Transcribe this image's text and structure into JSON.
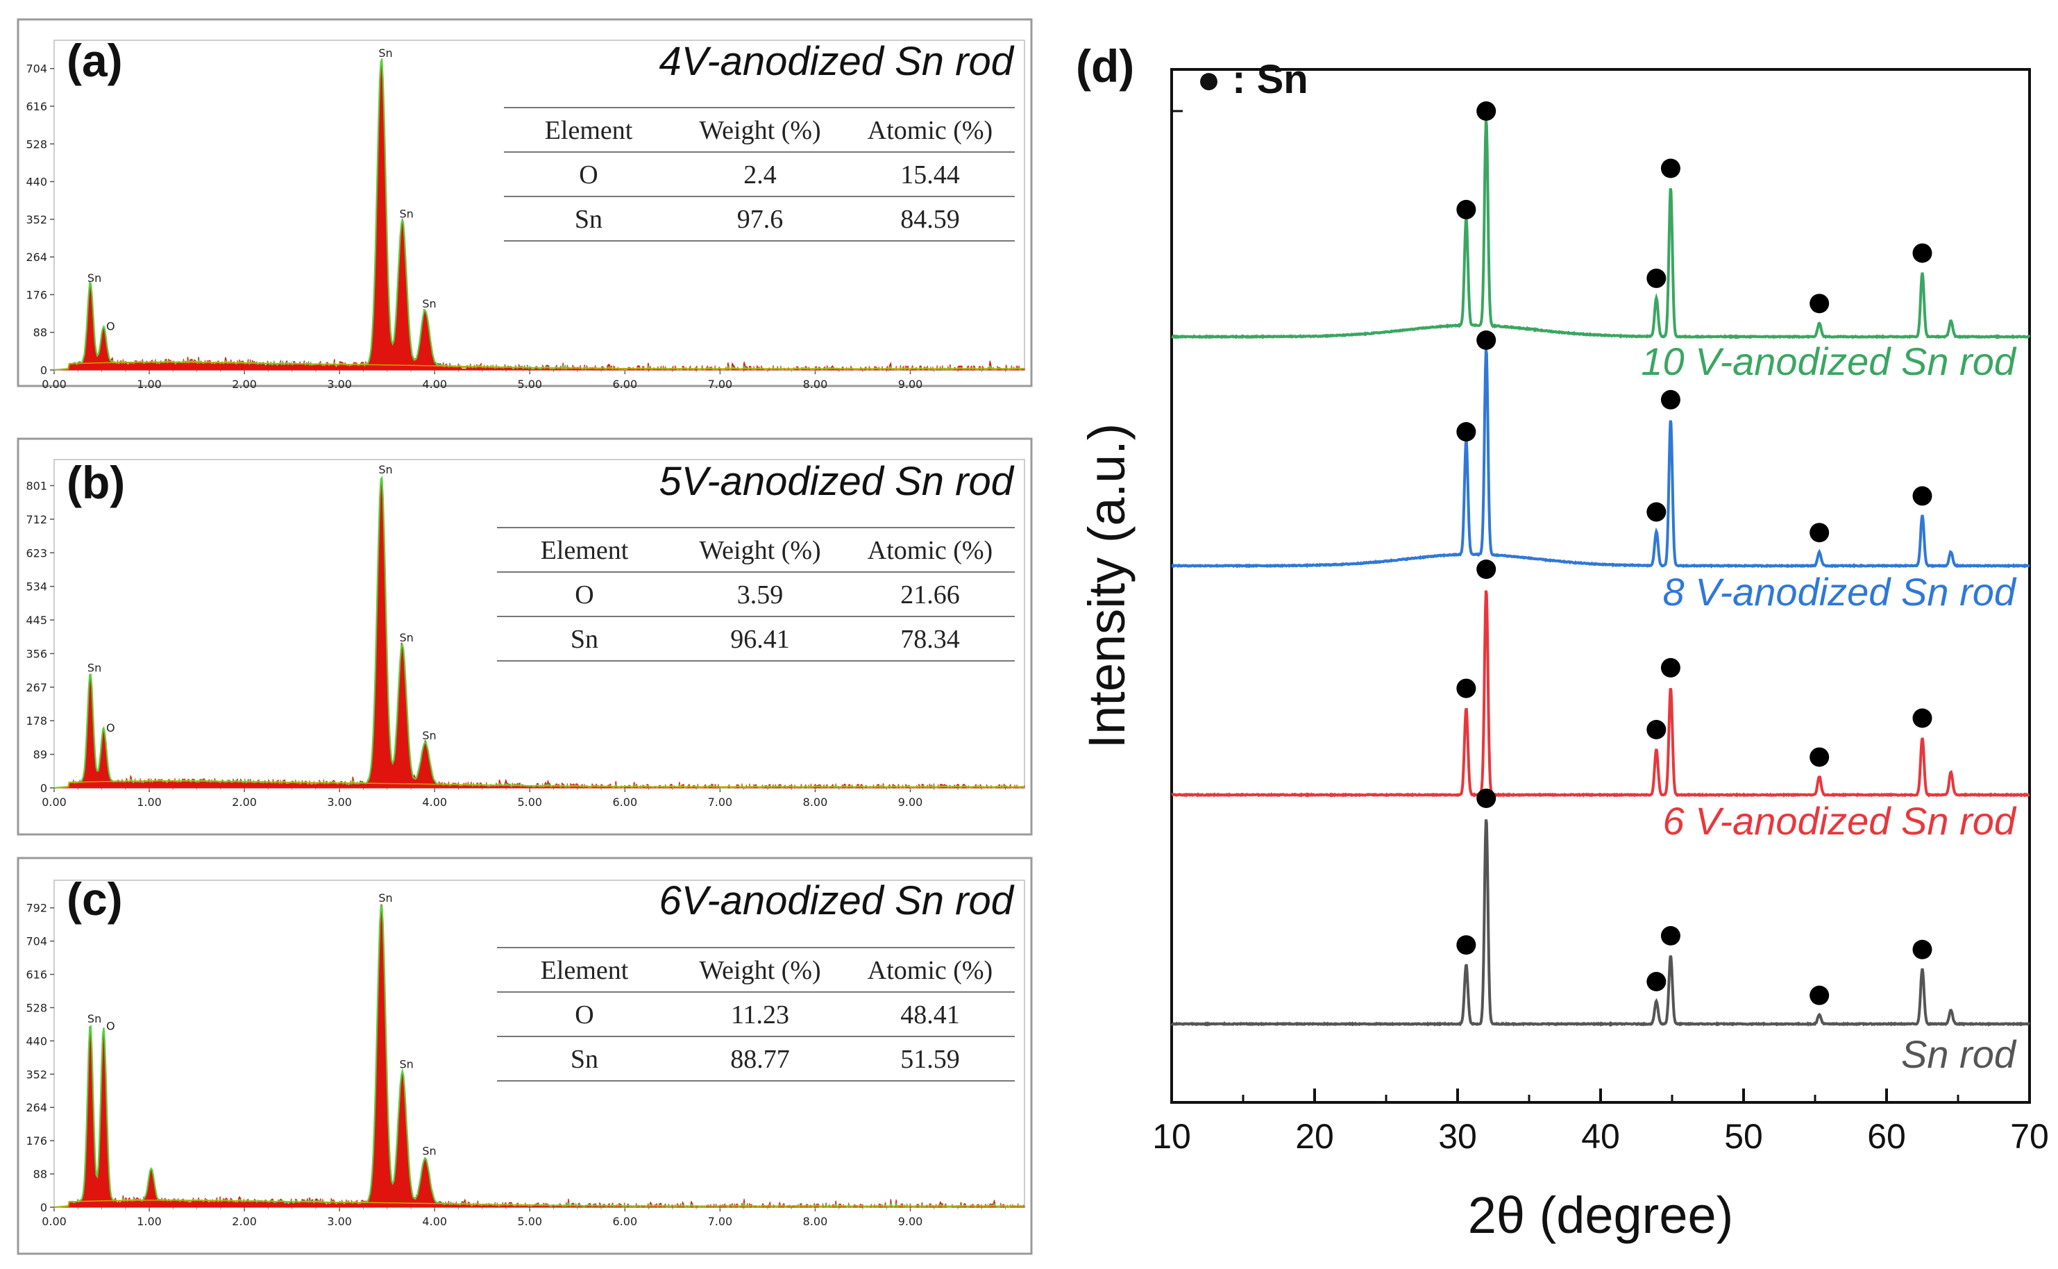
{
  "chart_data": [
    {
      "type": "line",
      "panel": "(a)",
      "title": "4V-anodized Sn rod",
      "x_ticks": [
        "0.00",
        "1.00",
        "2.00",
        "3.00",
        "4.00",
        "5.00",
        "6.00",
        "7.00",
        "8.00",
        "9.00"
      ],
      "xlim": [
        0,
        10.2
      ],
      "y_ticks": [
        "0",
        "88",
        "176",
        "264",
        "352",
        "440",
        "528",
        "616",
        "704"
      ],
      "ylim": [
        0,
        770
      ],
      "peaks": [
        {
          "x": 0.38,
          "y": 190,
          "label": "Sn"
        },
        {
          "x": 0.52,
          "y": 85,
          "label": "O"
        },
        {
          "x": 3.44,
          "y": 715,
          "label": "Sn"
        },
        {
          "x": 3.66,
          "y": 340,
          "label": "Sn"
        },
        {
          "x": 3.9,
          "y": 130,
          "label": "Sn"
        }
      ],
      "table": {
        "headers": [
          "Element",
          "Weight (%)",
          "Atomic (%)"
        ],
        "rows": [
          [
            "O",
            "2.4",
            "15.44"
          ],
          [
            "Sn",
            "97.6",
            "84.59"
          ]
        ]
      }
    },
    {
      "type": "line",
      "panel": "(b)",
      "title": "5V-anodized Sn rod",
      "x_ticks": [
        "0.00",
        "1.00",
        "2.00",
        "3.00",
        "4.00",
        "5.00",
        "6.00",
        "7.00",
        "8.00",
        "9.00"
      ],
      "xlim": [
        0,
        10.2
      ],
      "y_ticks": [
        "0",
        "89",
        "178",
        "267",
        "356",
        "445",
        "534",
        "623",
        "712",
        "801"
      ],
      "ylim": [
        0,
        870
      ],
      "peaks": [
        {
          "x": 0.38,
          "y": 290,
          "label": "Sn"
        },
        {
          "x": 0.52,
          "y": 140,
          "label": "O"
        },
        {
          "x": 3.44,
          "y": 815,
          "label": "Sn"
        },
        {
          "x": 3.66,
          "y": 370,
          "label": "Sn"
        },
        {
          "x": 3.9,
          "y": 110,
          "label": "Sn"
        }
      ],
      "table": {
        "headers": [
          "Element",
          "Weight (%)",
          "Atomic (%)"
        ],
        "rows": [
          [
            "O",
            "3.59",
            "21.66"
          ],
          [
            "Sn",
            "96.41",
            "78.34"
          ]
        ]
      }
    },
    {
      "type": "line",
      "panel": "(c)",
      "title": "6V-anodized Sn rod",
      "x_ticks": [
        "0.00",
        "1.00",
        "2.00",
        "3.00",
        "4.00",
        "5.00",
        "6.00",
        "7.00",
        "8.00",
        "9.00"
      ],
      "xlim": [
        0,
        10.2
      ],
      "y_ticks": [
        "0",
        "88",
        "176",
        "264",
        "352",
        "440",
        "528",
        "616",
        "704",
        "792"
      ],
      "ylim": [
        0,
        865
      ],
      "peaks": [
        {
          "x": 0.38,
          "y": 470,
          "label": "Sn"
        },
        {
          "x": 0.52,
          "y": 460,
          "label": "O"
        },
        {
          "x": 1.02,
          "y": 85,
          "label": ""
        },
        {
          "x": 3.44,
          "y": 790,
          "label": "Sn"
        },
        {
          "x": 3.66,
          "y": 350,
          "label": "Sn"
        },
        {
          "x": 3.9,
          "y": 120,
          "label": "Sn"
        }
      ],
      "table": {
        "headers": [
          "Element",
          "Weight (%)",
          "Atomic (%)"
        ],
        "rows": [
          [
            "O",
            "11.23",
            "48.41"
          ],
          [
            "Sn",
            "88.77",
            "51.59"
          ]
        ]
      }
    },
    {
      "type": "line",
      "panel": "(d)",
      "xlabel": "2θ (degree)",
      "ylabel": "Intensity (a.u.)",
      "xlim": [
        10,
        70
      ],
      "x_ticks": [
        "10",
        "20",
        "30",
        "40",
        "50",
        "60",
        "70"
      ],
      "legend": "● : Sn",
      "peak_positions": [
        30.6,
        32.0,
        43.9,
        44.9,
        55.3,
        62.5
      ],
      "series": [
        {
          "name": "10 V-anodized Sn rod",
          "color": "#3aa661",
          "baseline": 3,
          "hump": true,
          "peaks": [
            [
              30.6,
              0.47
            ],
            [
              32.0,
              0.9
            ],
            [
              43.9,
              0.17
            ],
            [
              44.9,
              0.65
            ],
            [
              55.3,
              0.06
            ],
            [
              62.5,
              0.28
            ],
            [
              64.5,
              0.07
            ]
          ]
        },
        {
          "name": "8 V-anodized Sn rod",
          "color": "#2f78d6",
          "baseline": 2,
          "hump": true,
          "peaks": [
            [
              30.6,
              0.5
            ],
            [
              32.0,
              0.9
            ],
            [
              43.9,
              0.15
            ],
            [
              44.9,
              0.64
            ],
            [
              55.3,
              0.06
            ],
            [
              62.5,
              0.22
            ],
            [
              64.5,
              0.06
            ]
          ]
        },
        {
          "name": "6 V-anodized Sn rod",
          "color": "#e8373c",
          "baseline": 1,
          "hump": false,
          "peaks": [
            [
              30.6,
              0.38
            ],
            [
              32.0,
              0.9
            ],
            [
              43.9,
              0.2
            ],
            [
              44.9,
              0.47
            ],
            [
              55.3,
              0.08
            ],
            [
              62.5,
              0.25
            ],
            [
              64.5,
              0.1
            ]
          ]
        },
        {
          "name": "Sn rod",
          "color": "#555555",
          "baseline": 0,
          "hump": false,
          "peaks": [
            [
              30.6,
              0.26
            ],
            [
              32.0,
              0.9
            ],
            [
              43.9,
              0.1
            ],
            [
              44.9,
              0.3
            ],
            [
              55.3,
              0.04
            ],
            [
              62.5,
              0.24
            ],
            [
              64.5,
              0.06
            ]
          ]
        }
      ]
    }
  ]
}
